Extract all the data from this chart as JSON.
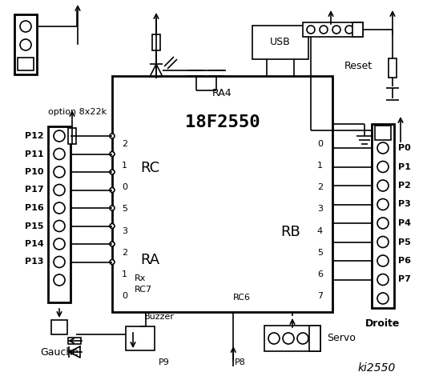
{
  "title": "ki2550",
  "bg_color": "#ffffff",
  "chip_label": "18F2550",
  "chip_sublabel": "RA4",
  "rc_label": "RC",
  "ra_label": "RA",
  "rb_label": "RB",
  "rc_pins_left": [
    "2",
    "1",
    "0",
    "5",
    "3",
    "2",
    "1",
    "0"
  ],
  "rb_pins_right": [
    "0",
    "1",
    "2",
    "3",
    "4",
    "5",
    "6",
    "7"
  ],
  "left_port_labels": [
    "P12",
    "P11",
    "P10",
    "P17",
    "P16",
    "P15",
    "P14",
    "P13"
  ],
  "right_port_labels": [
    "P0",
    "P1",
    "P2",
    "P3",
    "P4",
    "P5",
    "P6",
    "P7"
  ],
  "gauche_label": "Gauche",
  "droite_label": "Droite",
  "buzzer_label": "Buzzer",
  "p9_label": "P9",
  "p8_label": "P8",
  "servo_label": "Servo",
  "usb_label": "USB",
  "reset_label": "Reset",
  "option_label": "option 8x22k"
}
